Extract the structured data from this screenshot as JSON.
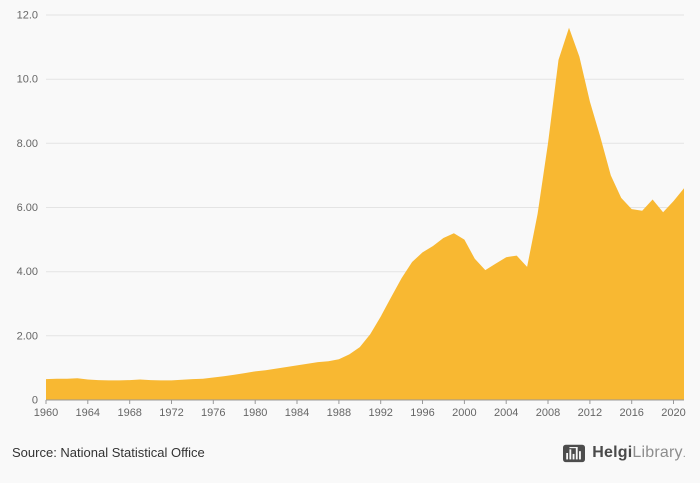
{
  "page": {
    "background": "#f9f9f9"
  },
  "chart_data": {
    "type": "area",
    "title": "",
    "xlabel": "",
    "ylabel": "",
    "legend": "none",
    "grid": true,
    "area_color": "#f8b832",
    "gridline_color": "#e4e4e4",
    "axis_line_color": "#999999",
    "tick_label_color": "#666666",
    "xlim": [
      1960,
      2021
    ],
    "ylim": [
      0,
      12
    ],
    "xticks": [
      1960,
      1964,
      1968,
      1972,
      1976,
      1980,
      1984,
      1988,
      1992,
      1996,
      2000,
      2004,
      2008,
      2012,
      2016,
      2020
    ],
    "yticks": [
      {
        "value": 0,
        "label": "0"
      },
      {
        "value": 2,
        "label": "2.00"
      },
      {
        "value": 4,
        "label": "4.00"
      },
      {
        "value": 6,
        "label": "6.00"
      },
      {
        "value": 8,
        "label": "8.00"
      },
      {
        "value": 10,
        "label": "10.0"
      },
      {
        "value": 12,
        "label": "12.0"
      }
    ],
    "x": [
      1960,
      1961,
      1962,
      1963,
      1964,
      1965,
      1966,
      1967,
      1968,
      1969,
      1970,
      1971,
      1972,
      1973,
      1974,
      1975,
      1976,
      1977,
      1978,
      1979,
      1980,
      1981,
      1982,
      1983,
      1984,
      1985,
      1986,
      1987,
      1988,
      1989,
      1990,
      1991,
      1992,
      1993,
      1994,
      1995,
      1996,
      1997,
      1998,
      1999,
      2000,
      2001,
      2002,
      2003,
      2004,
      2005,
      2006,
      2007,
      2008,
      2009,
      2010,
      2011,
      2012,
      2013,
      2014,
      2015,
      2016,
      2017,
      2018,
      2019,
      2020,
      2021
    ],
    "values": [
      0.65,
      0.66,
      0.66,
      0.68,
      0.64,
      0.62,
      0.61,
      0.61,
      0.62,
      0.64,
      0.62,
      0.61,
      0.61,
      0.63,
      0.65,
      0.66,
      0.7,
      0.74,
      0.79,
      0.84,
      0.89,
      0.93,
      0.98,
      1.03,
      1.08,
      1.13,
      1.18,
      1.21,
      1.27,
      1.42,
      1.65,
      2.05,
      2.6,
      3.2,
      3.8,
      4.3,
      4.6,
      4.8,
      5.05,
      5.2,
      5.0,
      4.4,
      4.05,
      4.25,
      4.45,
      4.5,
      4.15,
      5.8,
      8.0,
      10.6,
      11.6,
      10.7,
      9.3,
      8.2,
      7.0,
      6.3,
      5.95,
      5.9,
      6.25,
      5.85,
      6.2,
      6.6
    ]
  },
  "footer": {
    "source_text": "Source: National Statistical Office",
    "logo_primary": "Helgi",
    "logo_secondary": "Library",
    "logo_suffix": "."
  }
}
